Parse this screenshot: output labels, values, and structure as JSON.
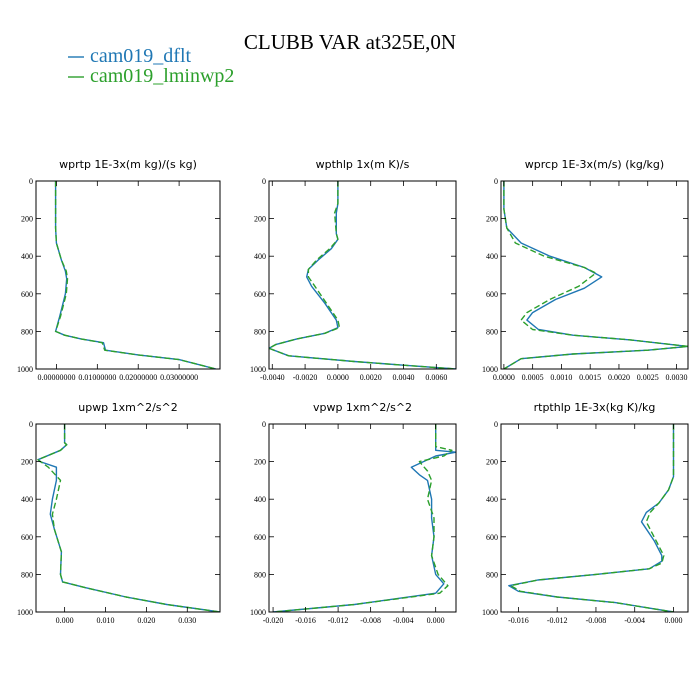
{
  "figure": {
    "title": "CLUBB VAR at325E,0N",
    "legend": [
      {
        "name": "cam019_dflt",
        "color": "#1f77b4",
        "dash": ""
      },
      {
        "name": "cam019_lminwp2",
        "color": "#2ca02c",
        "dash": "6,3"
      }
    ]
  },
  "chart_data": [
    {
      "type": "line",
      "title": "wprtp  1E-3x(m kg)/(s kg)",
      "xlim": [
        -0.005,
        0.04
      ],
      "ylim": [
        0,
        1000
      ],
      "y_inverted": true,
      "xticks": [
        0.0,
        0.01,
        0.02,
        0.03
      ],
      "xtick_labels": [
        "0.00000000",
        "0.01000000",
        "0.02000000",
        "0.03000000"
      ],
      "yticks": [
        0,
        200,
        400,
        600,
        800,
        1000
      ],
      "series": [
        {
          "name": "cam019_dflt",
          "points": [
            [
              -0.0002,
              0
            ],
            [
              -0.0002,
              250
            ],
            [
              0,
              330
            ],
            [
              0.0012,
              420
            ],
            [
              0.0022,
              480
            ],
            [
              0.0025,
              520
            ],
            [
              0.0022,
              600
            ],
            [
              0.0008,
              720
            ],
            [
              -0.0002,
              800
            ],
            [
              0.002,
              820
            ],
            [
              0.006,
              840
            ],
            [
              0.0115,
              860
            ],
            [
              0.012,
              900
            ],
            [
              0.02,
              925
            ],
            [
              0.03,
              950
            ],
            [
              0.039,
              1000
            ]
          ]
        },
        {
          "name": "cam019_lminwp2",
          "points": [
            [
              -0.0002,
              0
            ],
            [
              -0.0002,
              250
            ],
            [
              0,
              330
            ],
            [
              0.0012,
              420
            ],
            [
              0.0024,
              480
            ],
            [
              0.0027,
              520
            ],
            [
              0.0024,
              600
            ],
            [
              0.001,
              720
            ],
            [
              -0.0002,
              800
            ],
            [
              0.002,
              820
            ],
            [
              0.006,
              840
            ],
            [
              0.0112,
              860
            ],
            [
              0.0118,
              900
            ],
            [
              0.02,
              925
            ],
            [
              0.03,
              950
            ],
            [
              0.039,
              1000
            ]
          ]
        }
      ]
    },
    {
      "type": "line",
      "title": "wpthlp  1x(m K)/s",
      "xlim": [
        -0.0042,
        0.0072
      ],
      "ylim": [
        0,
        1000
      ],
      "y_inverted": true,
      "xticks": [
        -0.004,
        -0.002,
        0.0,
        0.002,
        0.004,
        0.006
      ],
      "xtick_labels": [
        "-0.0040",
        "-0.0020",
        "0.0000",
        "0.0020",
        "0.0040",
        "0.0060"
      ],
      "yticks": [
        0,
        200,
        400,
        600,
        800,
        1000
      ],
      "series": [
        {
          "name": "cam019_dflt",
          "points": [
            [
              0,
              0
            ],
            [
              0,
              120
            ],
            [
              -0.0001,
              170
            ],
            [
              -0.0001,
              280
            ],
            [
              0,
              310
            ],
            [
              -0.0004,
              360
            ],
            [
              -0.0012,
              420
            ],
            [
              -0.0018,
              470
            ],
            [
              -0.0019,
              510
            ],
            [
              -0.0016,
              560
            ],
            [
              -0.0008,
              650
            ],
            [
              -0.0001,
              740
            ],
            [
              0,
              780
            ],
            [
              -0.0008,
              810
            ],
            [
              -0.0025,
              840
            ],
            [
              -0.0038,
              870
            ],
            [
              -0.0042,
              890
            ],
            [
              -0.003,
              930
            ],
            [
              0.001,
              960
            ],
            [
              0.004,
              980
            ],
            [
              0.0072,
              1000
            ]
          ]
        },
        {
          "name": "cam019_lminwp2",
          "points": [
            [
              0,
              0
            ],
            [
              0,
              120
            ],
            [
              -0.0002,
              170
            ],
            [
              -0.0001,
              280
            ],
            [
              0,
              310
            ],
            [
              -0.0005,
              360
            ],
            [
              -0.0013,
              420
            ],
            [
              -0.0018,
              470
            ],
            [
              -0.0018,
              510
            ],
            [
              -0.0014,
              560
            ],
            [
              -0.0007,
              650
            ],
            [
              0,
              740
            ],
            [
              0.0001,
              780
            ],
            [
              -0.0008,
              810
            ],
            [
              -0.0025,
              840
            ],
            [
              -0.0038,
              870
            ],
            [
              -0.0042,
              890
            ],
            [
              -0.003,
              930
            ],
            [
              0.001,
              960
            ],
            [
              0.004,
              980
            ],
            [
              0.0072,
              1000
            ]
          ]
        }
      ]
    },
    {
      "type": "line",
      "title": "wprcp  1E-3x(m/s) (kg/kg)",
      "xlim": [
        -5e-05,
        0.0032
      ],
      "ylim": [
        0,
        1000
      ],
      "y_inverted": true,
      "xticks": [
        0.0,
        0.0005,
        0.001,
        0.0015,
        0.002,
        0.0025,
        0.003
      ],
      "xtick_labels": [
        "0.0000",
        "0.0005",
        "0.0010",
        "0.0015",
        "0.0020",
        "0.0025",
        "0.0030"
      ],
      "yticks": [
        0,
        200,
        400,
        600,
        800,
        1000
      ],
      "series": [
        {
          "name": "cam019_dflt",
          "points": [
            [
              0,
              0
            ],
            [
              0,
              150
            ],
            [
              5e-05,
              250
            ],
            [
              0.0003,
              330
            ],
            [
              0.0008,
              400
            ],
            [
              0.0014,
              460
            ],
            [
              0.0017,
              510
            ],
            [
              0.0014,
              570
            ],
            [
              0.0009,
              630
            ],
            [
              0.0005,
              700
            ],
            [
              0.0004,
              740
            ],
            [
              0.0006,
              790
            ],
            [
              0.0012,
              820
            ],
            [
              0.0022,
              845
            ],
            [
              0.0032,
              880
            ],
            [
              0.0025,
              900
            ],
            [
              0.0012,
              920
            ],
            [
              0.0003,
              945
            ],
            [
              0,
              1000
            ]
          ]
        },
        {
          "name": "cam019_lminwp2",
          "points": [
            [
              0,
              0
            ],
            [
              0,
              150
            ],
            [
              5e-05,
              250
            ],
            [
              0.0002,
              330
            ],
            [
              0.0007,
              400
            ],
            [
              0.0014,
              460
            ],
            [
              0.0016,
              490
            ],
            [
              0.0013,
              560
            ],
            [
              0.0008,
              630
            ],
            [
              0.0004,
              700
            ],
            [
              0.0003,
              740
            ],
            [
              0.0005,
              790
            ],
            [
              0.0012,
              820
            ],
            [
              0.0022,
              845
            ],
            [
              0.0032,
              880
            ],
            [
              0.0025,
              900
            ],
            [
              0.0012,
              920
            ],
            [
              0.0003,
              945
            ],
            [
              0,
              1000
            ]
          ]
        }
      ]
    },
    {
      "type": "line",
      "title": "upwp  1xm^2/s^2",
      "xlim": [
        -0.007,
        0.038
      ],
      "ylim": [
        0,
        1000
      ],
      "y_inverted": true,
      "xticks": [
        0.0,
        0.01,
        0.02,
        0.03
      ],
      "xtick_labels": [
        "0.000",
        "0.010",
        "0.020",
        "0.030"
      ],
      "yticks": [
        0,
        200,
        400,
        600,
        800,
        1000
      ],
      "series": [
        {
          "name": "cam019_dflt",
          "points": [
            [
              0,
              0
            ],
            [
              0,
              100
            ],
            [
              0.0005,
              110
            ],
            [
              -0.001,
              140
            ],
            [
              -0.0065,
              190
            ],
            [
              -0.006,
              200
            ],
            [
              -0.002,
              230
            ],
            [
              -0.002,
              300
            ],
            [
              -0.003,
              400
            ],
            [
              -0.0035,
              480
            ],
            [
              -0.0025,
              560
            ],
            [
              -0.0008,
              680
            ],
            [
              -0.001,
              800
            ],
            [
              -0.0005,
              840
            ],
            [
              0.005,
              870
            ],
            [
              0.015,
              920
            ],
            [
              0.025,
              960
            ],
            [
              0.038,
              1000
            ]
          ]
        },
        {
          "name": "cam019_lminwp2",
          "points": [
            [
              0,
              0
            ],
            [
              0,
              100
            ],
            [
              0.0005,
              110
            ],
            [
              -0.001,
              140
            ],
            [
              -0.0065,
              190
            ],
            [
              -0.004,
              230
            ],
            [
              -0.001,
              300
            ],
            [
              -0.002,
              400
            ],
            [
              -0.003,
              480
            ],
            [
              -0.0025,
              560
            ],
            [
              -0.0008,
              680
            ],
            [
              -0.001,
              800
            ],
            [
              -0.0005,
              840
            ],
            [
              0.005,
              870
            ],
            [
              0.015,
              920
            ],
            [
              0.025,
              960
            ],
            [
              0.038,
              1000
            ]
          ]
        }
      ]
    },
    {
      "type": "line",
      "title": "vpwp  1xm^2/s^2",
      "xlim": [
        -0.0205,
        0.0025
      ],
      "ylim": [
        0,
        1000
      ],
      "y_inverted": true,
      "xticks": [
        -0.02,
        -0.016,
        -0.012,
        -0.008,
        -0.004,
        0.0
      ],
      "xtick_labels": [
        "-0.020",
        "-0.016",
        "-0.012",
        "-0.008",
        "-0.004",
        "0.000"
      ],
      "yticks": [
        0,
        200,
        400,
        600,
        800,
        1000
      ],
      "series": [
        {
          "name": "cam019_dflt",
          "points": [
            [
              0,
              0
            ],
            [
              0,
              100
            ],
            [
              0,
              140
            ],
            [
              0.0025,
              150
            ],
            [
              0,
              170
            ],
            [
              -0.0015,
              200
            ],
            [
              -0.003,
              230
            ],
            [
              -0.002,
              270
            ],
            [
              -0.001,
              300
            ],
            [
              -0.0005,
              400
            ],
            [
              -0.0005,
              500
            ],
            [
              -0.0002,
              600
            ],
            [
              -0.0005,
              700
            ],
            [
              0,
              800
            ],
            [
              0.001,
              850
            ],
            [
              0,
              900
            ],
            [
              -0.01,
              960
            ],
            [
              -0.02,
              1000
            ]
          ]
        },
        {
          "name": "cam019_lminwp2",
          "points": [
            [
              0,
              0
            ],
            [
              0,
              100
            ],
            [
              0,
              120
            ],
            [
              0.002,
              140
            ],
            [
              0.001,
              170
            ],
            [
              -0.002,
              200
            ],
            [
              -0.001,
              250
            ],
            [
              -0.0005,
              300
            ],
            [
              -0.001,
              400
            ],
            [
              -0.0002,
              500
            ],
            [
              -0.0002,
              600
            ],
            [
              -0.0005,
              700
            ],
            [
              0.0003,
              800
            ],
            [
              0.0015,
              860
            ],
            [
              0.0005,
              900
            ],
            [
              -0.01,
              960
            ],
            [
              -0.02,
              1000
            ]
          ]
        }
      ]
    },
    {
      "type": "line",
      "title": "rtpthlp  1E-3x(kg K)/kg",
      "xlim": [
        -0.0178,
        0.0015
      ],
      "ylim": [
        0,
        1000
      ],
      "y_inverted": true,
      "xticks": [
        -0.016,
        -0.012,
        -0.008,
        -0.004,
        0.0
      ],
      "xtick_labels": [
        "-0.016",
        "-0.012",
        "-0.008",
        "-0.004",
        "0.000"
      ],
      "yticks": [
        0,
        200,
        400,
        600,
        800,
        1000
      ],
      "series": [
        {
          "name": "cam019_dflt",
          "points": [
            [
              0,
              0
            ],
            [
              0,
              280
            ],
            [
              -0.0005,
              350
            ],
            [
              -0.0015,
              420
            ],
            [
              -0.0028,
              470
            ],
            [
              -0.0033,
              520
            ],
            [
              -0.002,
              620
            ],
            [
              -0.0012,
              700
            ],
            [
              -0.0012,
              730
            ],
            [
              -0.0025,
              770
            ],
            [
              -0.008,
              800
            ],
            [
              -0.014,
              830
            ],
            [
              -0.017,
              860
            ],
            [
              -0.016,
              890
            ],
            [
              -0.012,
              920
            ],
            [
              -0.006,
              950
            ],
            [
              0,
              1000
            ]
          ]
        },
        {
          "name": "cam019_lminwp2",
          "points": [
            [
              0,
              0
            ],
            [
              0,
              280
            ],
            [
              -0.0005,
              350
            ],
            [
              -0.0015,
              420
            ],
            [
              -0.0024,
              470
            ],
            [
              -0.0028,
              520
            ],
            [
              -0.0018,
              620
            ],
            [
              -0.001,
              700
            ],
            [
              -0.0012,
              740
            ],
            [
              -0.0025,
              770
            ],
            [
              -0.008,
              800
            ],
            [
              -0.014,
              830
            ],
            [
              -0.0168,
              860
            ],
            [
              -0.0158,
              890
            ],
            [
              -0.012,
              920
            ],
            [
              -0.006,
              950
            ],
            [
              0,
              1000
            ]
          ]
        }
      ]
    }
  ]
}
